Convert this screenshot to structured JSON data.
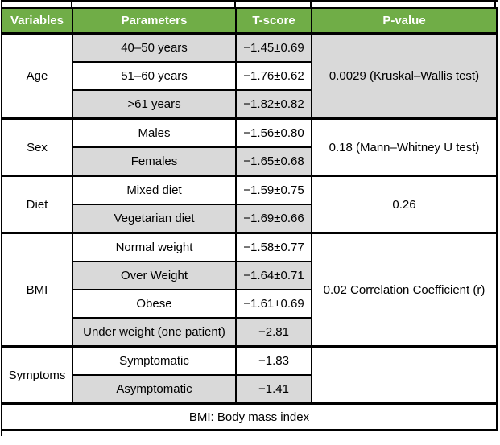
{
  "table": {
    "headers": [
      "Variables",
      "Parameters",
      "T-score",
      "P-value"
    ],
    "sections": [
      {
        "variable": "Age",
        "rows": [
          {
            "parameter": "40–50 years",
            "t_score": "−1.45±0.69"
          },
          {
            "parameter": "51–60 years",
            "t_score": "−1.76±0.62"
          },
          {
            "parameter": ">61 years",
            "t_score": "−1.82±0.82"
          }
        ],
        "p_value": "0.0029 (Kruskal–Wallis test)"
      },
      {
        "variable": "Sex",
        "rows": [
          {
            "parameter": "Males",
            "t_score": "−1.56±0.80"
          },
          {
            "parameter": "Females",
            "t_score": "−1.65±0.68"
          }
        ],
        "p_value": "0.18 (Mann–Whitney U test)"
      },
      {
        "variable": "Diet",
        "rows": [
          {
            "parameter": "Mixed diet",
            "t_score": "−1.59±0.75"
          },
          {
            "parameter": "Vegetarian diet",
            "t_score": "−1.69±0.66"
          }
        ],
        "p_value": "0.26"
      },
      {
        "variable": "BMI",
        "rows": [
          {
            "parameter": "Normal weight",
            "t_score": "−1.58±0.77"
          },
          {
            "parameter": "Over Weight",
            "t_score": "−1.64±0.71"
          },
          {
            "parameter": "Obese",
            "t_score": "−1.61±0.69"
          },
          {
            "parameter": "Under weight (one patient)",
            "t_score": "−2.81"
          }
        ],
        "p_value": "0.02 Correlation Coefficient (r)"
      },
      {
        "variable": "Symptoms",
        "rows": [
          {
            "parameter": "Symptomatic",
            "t_score": "−1.83"
          },
          {
            "parameter": "Asymptomatic",
            "t_score": "−1.41"
          }
        ],
        "p_value": ""
      }
    ],
    "footer": "BMI: Body mass index",
    "colors": {
      "header_bg": "#70ad47",
      "header_text": "#ffffff",
      "stripe_bg": "#d9d9d9",
      "border": "#000000"
    }
  }
}
